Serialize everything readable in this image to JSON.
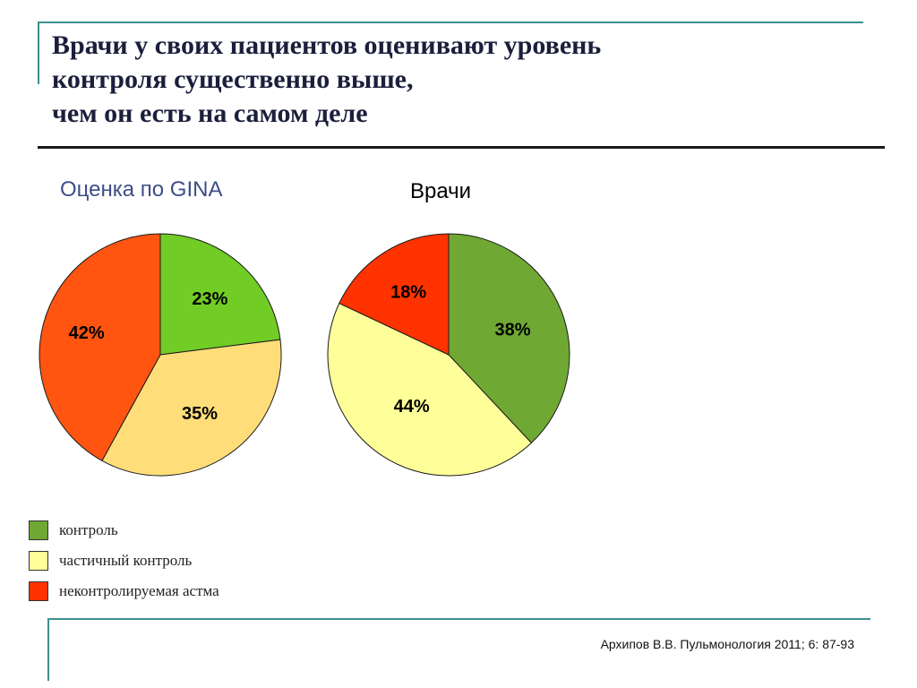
{
  "slide": {
    "title_lines": [
      "Врачи у своих пациентов оценивают уровень",
      "контроля существенно выше,",
      "чем он есть на самом деле"
    ],
    "citation": "Архипов В.В. Пульмонология 2011; 6: 87-93"
  },
  "legend": [
    {
      "label": "контроль",
      "color": "#6fa833"
    },
    {
      "label": "частичный контроль",
      "color": "#ffff99"
    },
    {
      "label": "неконтролируемая астма",
      "color": "#ff3300"
    }
  ],
  "chart_data": [
    {
      "type": "pie",
      "title": "Оценка по GINA",
      "categories": [
        "контроль",
        "частичный контроль",
        "неконтролируемая астма"
      ],
      "values": [
        23,
        35,
        42
      ],
      "labels": [
        "23%",
        "35%",
        "42%"
      ],
      "colors": [
        "#72cc26",
        "#ffde7a",
        "#ff5511"
      ]
    },
    {
      "type": "pie",
      "title": "Врачи",
      "categories": [
        "контроль",
        "частичный контроль",
        "неконтролируемая астма"
      ],
      "values": [
        38,
        44,
        18
      ],
      "labels": [
        "38%",
        "44%",
        "18%"
      ],
      "colors": [
        "#6fa833",
        "#ffff99",
        "#ff3300"
      ]
    }
  ]
}
